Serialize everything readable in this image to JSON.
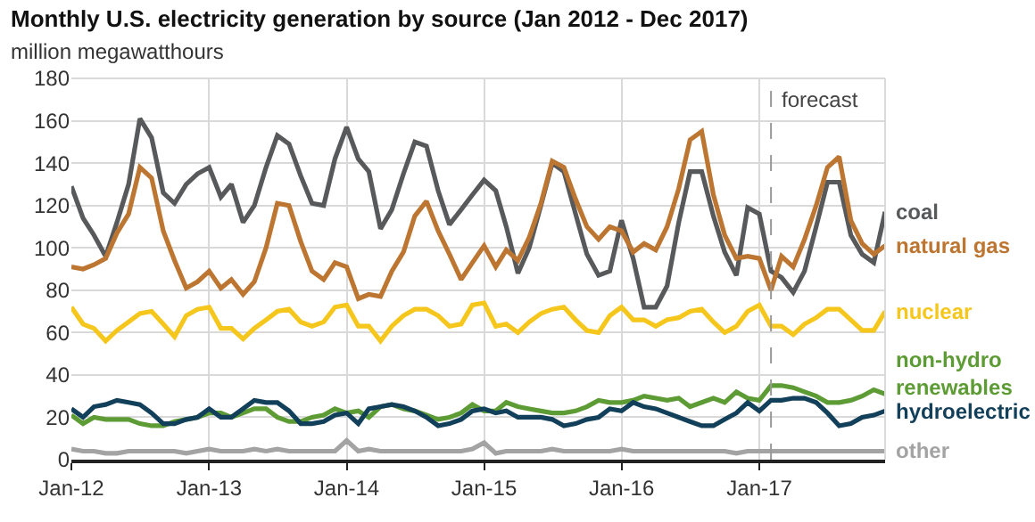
{
  "chart_data": {
    "type": "line",
    "title": "Monthly U.S. electricity generation by source (Jan 2012 - Dec 2017)",
    "subtitle": "million megawatthours",
    "x": [
      "2012-01",
      "2012-02",
      "2012-03",
      "2012-04",
      "2012-05",
      "2012-06",
      "2012-07",
      "2012-08",
      "2012-09",
      "2012-10",
      "2012-11",
      "2012-12",
      "2013-01",
      "2013-02",
      "2013-03",
      "2013-04",
      "2013-05",
      "2013-06",
      "2013-07",
      "2013-08",
      "2013-09",
      "2013-10",
      "2013-11",
      "2013-12",
      "2014-01",
      "2014-02",
      "2014-03",
      "2014-04",
      "2014-05",
      "2014-06",
      "2014-07",
      "2014-08",
      "2014-09",
      "2014-10",
      "2014-11",
      "2014-12",
      "2015-01",
      "2015-02",
      "2015-03",
      "2015-04",
      "2015-05",
      "2015-06",
      "2015-07",
      "2015-08",
      "2015-09",
      "2015-10",
      "2015-11",
      "2015-12",
      "2016-01",
      "2016-02",
      "2016-03",
      "2016-04",
      "2016-05",
      "2016-06",
      "2016-07",
      "2016-08",
      "2016-09",
      "2016-10",
      "2016-11",
      "2016-12",
      "2017-01",
      "2017-02",
      "2017-03",
      "2017-04",
      "2017-05",
      "2017-06",
      "2017-07",
      "2017-08",
      "2017-09",
      "2017-10",
      "2017-11",
      "2017-12"
    ],
    "series": [
      {
        "name": "coal",
        "color": "#58595b",
        "values": [
          129,
          114,
          106,
          96,
          112,
          130,
          161,
          152,
          126,
          121,
          130,
          135,
          138,
          124,
          130,
          112,
          120,
          138,
          153,
          149,
          134,
          121,
          120,
          142,
          157,
          142,
          136,
          109,
          118,
          135,
          150,
          148,
          127,
          111,
          118,
          125,
          132,
          127,
          110,
          88,
          100,
          120,
          140,
          136,
          116,
          97,
          87,
          89,
          113,
          95,
          72,
          72,
          82,
          112,
          136,
          136,
          115,
          98,
          87,
          119,
          116,
          89,
          86,
          79,
          89,
          110,
          131,
          131,
          106,
          97,
          93,
          117
        ]
      },
      {
        "name": "natural gas",
        "color": "#bd7631",
        "values": [
          91,
          90,
          92,
          95,
          107,
          116,
          138,
          133,
          108,
          94,
          81,
          84,
          89,
          81,
          85,
          78,
          84,
          100,
          121,
          120,
          103,
          89,
          85,
          93,
          91,
          76,
          78,
          77,
          89,
          98,
          115,
          122,
          108,
          97,
          85,
          93,
          101,
          91,
          99,
          94,
          105,
          121,
          141,
          138,
          123,
          110,
          104,
          110,
          108,
          98,
          102,
          99,
          110,
          128,
          151,
          155,
          125,
          106,
          95,
          96,
          95,
          80,
          96,
          91,
          104,
          120,
          138,
          143,
          113,
          102,
          97,
          101
        ]
      },
      {
        "name": "nuclear",
        "color": "#f5c61c",
        "values": [
          72,
          64,
          62,
          56,
          61,
          65,
          69,
          70,
          64,
          58,
          68,
          71,
          72,
          62,
          62,
          57,
          62,
          66,
          70,
          71,
          65,
          63,
          65,
          72,
          73,
          63,
          63,
          56,
          63,
          68,
          71,
          71,
          68,
          63,
          64,
          73,
          74,
          63,
          64,
          60,
          65,
          69,
          71,
          72,
          66,
          61,
          60,
          68,
          72,
          66,
          66,
          63,
          66,
          67,
          70,
          71,
          65,
          60,
          63,
          70,
          73,
          63,
          63,
          59,
          64,
          67,
          71,
          71,
          66,
          61,
          61,
          70
        ]
      },
      {
        "name": "non-hydro\nrenewables",
        "color": "#5d9b34",
        "values": [
          21,
          17,
          20,
          19,
          19,
          19,
          17,
          16,
          16,
          18,
          19,
          20,
          22,
          22,
          20,
          22,
          24,
          24,
          20,
          18,
          18,
          20,
          21,
          24,
          22,
          23,
          20,
          25,
          26,
          24,
          23,
          21,
          19,
          20,
          22,
          26,
          23,
          23,
          27,
          25,
          24,
          23,
          22,
          22,
          23,
          25,
          28,
          27,
          27,
          28,
          30,
          29,
          28,
          29,
          25,
          27,
          29,
          27,
          32,
          29,
          28,
          35,
          35,
          34,
          32,
          30,
          27,
          27,
          28,
          30,
          33,
          31
        ]
      },
      {
        "name": "hydroelectric",
        "color": "#123f5a",
        "values": [
          24,
          20,
          25,
          26,
          28,
          27,
          26,
          22,
          17,
          17,
          19,
          20,
          24,
          20,
          20,
          24,
          28,
          27,
          27,
          23,
          17,
          17,
          18,
          21,
          22,
          17,
          24,
          25,
          26,
          25,
          23,
          20,
          16,
          17,
          19,
          23,
          24,
          22,
          23,
          20,
          20,
          20,
          19,
          16,
          17,
          19,
          20,
          24,
          23,
          27,
          25,
          24,
          22,
          20,
          18,
          16,
          16,
          19,
          22,
          27,
          23,
          28,
          28,
          29,
          29,
          27,
          22,
          16,
          17,
          20,
          21,
          23
        ]
      },
      {
        "name": "other",
        "color": "#a3a3a3",
        "values": [
          5,
          4,
          4,
          3,
          3,
          4,
          4,
          4,
          4,
          4,
          3,
          4,
          5,
          4,
          4,
          4,
          5,
          4,
          5,
          4,
          4,
          4,
          4,
          4,
          9,
          4,
          5,
          4,
          4,
          4,
          4,
          4,
          4,
          4,
          4,
          5,
          8,
          3,
          4,
          4,
          4,
          4,
          5,
          4,
          4,
          4,
          4,
          4,
          5,
          4,
          4,
          4,
          4,
          4,
          4,
          4,
          4,
          4,
          3,
          4,
          4,
          4,
          4,
          4,
          4,
          4,
          4,
          4,
          4,
          4,
          4,
          4
        ]
      }
    ],
    "xlim": [
      "2012-01",
      "2017-12"
    ],
    "xticks": [
      {
        "value": "2012-01",
        "label": "Jan-12"
      },
      {
        "value": "2013-01",
        "label": "Jan-13"
      },
      {
        "value": "2014-01",
        "label": "Jan-14"
      },
      {
        "value": "2015-01",
        "label": "Jan-15"
      },
      {
        "value": "2016-01",
        "label": "Jan-16"
      },
      {
        "value": "2017-01",
        "label": "Jan-17"
      }
    ],
    "ylim": [
      0,
      180
    ],
    "yticks": [
      0,
      20,
      40,
      60,
      80,
      100,
      120,
      140,
      160,
      180
    ],
    "ref_lines": [
      {
        "axis": "x",
        "value": "2017-02",
        "label": "forecast",
        "color": "#999999",
        "line_style": "dashed"
      }
    ],
    "grid": true,
    "legend": false,
    "marker": "none",
    "line_style": "solid"
  }
}
